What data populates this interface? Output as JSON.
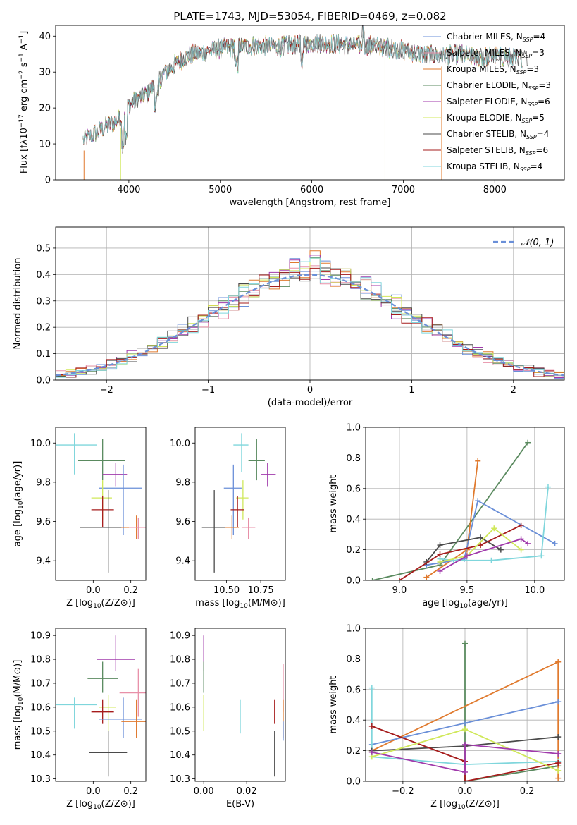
{
  "colors": {
    "cornflower": "#6a8fd8",
    "orange": "#e07a2e",
    "green": "#5a8a5f",
    "purple": "#a03aab",
    "yellow": "#d0e85a",
    "teal": "#7fd6dc",
    "charcoal": "#4a4a4a",
    "crimson": "#a61c1c",
    "pink": "#e890a8"
  },
  "chart_data": [
    {
      "id": "spectrum",
      "type": "line",
      "title": "PLATE=1743, MJD=53054, FIBERID=0469, z=0.082",
      "xlabel": "wavelength [Angstrom, rest frame]",
      "ylabel": "Flux [fλ10^−17 erg cm^−2 s^−1 A^−1]",
      "xlim": [
        3200,
        8760
      ],
      "ylim": [
        0,
        43
      ],
      "xticks": [
        "4000",
        "5000",
        "6000",
        "7000",
        "8000"
      ],
      "yticks": [
        "0",
        "10",
        "20",
        "30",
        "40"
      ],
      "legend_position": "top-right",
      "x": [
        3500,
        3700,
        3900,
        4000,
        4100,
        4200,
        4300,
        4400,
        4500,
        4600,
        4700,
        4800,
        4900,
        5000,
        5200,
        5400,
        5600,
        5800,
        6000,
        6200,
        6400,
        6600,
        6800,
        7000,
        7200,
        7400,
        7600,
        7800,
        8000,
        8200,
        8400
      ],
      "y": [
        11,
        14,
        17,
        21,
        22.5,
        24,
        27,
        30,
        32,
        34,
        35,
        35.5,
        36,
        36.5,
        37,
        37.5,
        37,
        37.5,
        38,
        38,
        37.5,
        37.5,
        37,
        36,
        35,
        34.5,
        35,
        34,
        34.5,
        34,
        34
      ],
      "series": [
        {
          "name": "Chabrier MILES, N",
          "sub": "SSP",
          "suffix": "=4",
          "color_key": "cornflower"
        },
        {
          "name": "Salpeter MILES, N",
          "sub": "SSP",
          "suffix": "=3",
          "color_key": "pink"
        },
        {
          "name": "Kroupa MILES, N",
          "sub": "SSP",
          "suffix": "=3",
          "color_key": "orange"
        },
        {
          "name": "Chabrier ELODIE, N",
          "sub": "SSP",
          "suffix": "=3",
          "color_key": "green"
        },
        {
          "name": "Salpeter ELODIE, N",
          "sub": "SSP",
          "suffix": "=6",
          "color_key": "purple"
        },
        {
          "name": "Kroupa ELODIE, N",
          "sub": "SSP",
          "suffix": "=5",
          "color_key": "yellow"
        },
        {
          "name": "Chabrier STELIB, N",
          "sub": "SSP",
          "suffix": "=4",
          "color_key": "charcoal"
        },
        {
          "name": "Salpeter STELIB, N",
          "sub": "SSP",
          "suffix": "=6",
          "color_key": "crimson"
        },
        {
          "name": "Kroupa STELIB, N",
          "sub": "SSP",
          "suffix": "=4",
          "color_key": "teal"
        }
      ]
    },
    {
      "id": "residuals",
      "type": "histogram",
      "xlabel": "(data-model)/error",
      "ylabel": "Normed distribution",
      "xlim": [
        -2.5,
        2.5
      ],
      "ylim": [
        0,
        0.58
      ],
      "xticks": [
        "−2",
        "−1",
        "0",
        "1",
        "2"
      ],
      "yticks": [
        "0.0",
        "0.1",
        "0.2",
        "0.3",
        "0.4",
        "0.5"
      ],
      "grid": true,
      "legend_position": "top-right",
      "gaussian_label": "𝒩(0, 1)",
      "bin_width": 0.1
    },
    {
      "id": "age-vs-Z",
      "type": "errorbar",
      "xlabel": "Z [log10(Z/Z⊙)]",
      "ylabel": "age  [log10(age/yr)]",
      "xlim": [
        -0.2,
        0.28
      ],
      "ylim": [
        9.3,
        10.08
      ],
      "xticks": [
        "0.0",
        "0.2"
      ],
      "yticks": [
        "9.4",
        "9.6",
        "9.8",
        "10.0"
      ],
      "points": [
        {
          "color_key": "teal",
          "x": -0.1,
          "y": 9.99,
          "xerr": [
            0.1,
            0.12
          ],
          "yerr": [
            0.15,
            0.06
          ]
        },
        {
          "color_key": "green",
          "x": 0.05,
          "y": 9.91,
          "xerr": [
            0.13,
            0.12
          ],
          "yerr": [
            0.1,
            0.11
          ]
        },
        {
          "color_key": "purple",
          "x": 0.12,
          "y": 9.84,
          "xerr": [
            0.07,
            0.06
          ],
          "yerr": [
            0.06,
            0.06
          ]
        },
        {
          "color_key": "cornflower",
          "x": 0.16,
          "y": 9.77,
          "xerr": [
            0.13,
            0.1
          ],
          "yerr": [
            0.24,
            0.12
          ]
        },
        {
          "color_key": "yellow",
          "x": 0.05,
          "y": 9.72,
          "xerr": [
            0.06,
            0.05
          ],
          "yerr": [
            0.11,
            0.09
          ]
        },
        {
          "color_key": "crimson",
          "x": 0.05,
          "y": 9.66,
          "xerr": [
            0.06,
            0.06
          ],
          "yerr": [
            0.09,
            0.07
          ]
        },
        {
          "color_key": "charcoal",
          "x": 0.08,
          "y": 9.57,
          "xerr": [
            0.15,
            0.1
          ],
          "yerr": [
            0.23,
            0.19
          ]
        },
        {
          "color_key": "orange",
          "x": 0.23,
          "y": 9.57,
          "xerr": [
            0.08,
            0.06
          ],
          "yerr": [
            0.06,
            0.06
          ]
        },
        {
          "color_key": "pink",
          "x": 0.24,
          "y": 9.57,
          "xerr": [
            0.05,
            0.04
          ],
          "yerr": [
            0.06,
            0.05
          ]
        }
      ]
    },
    {
      "id": "age-vs-mass",
      "type": "errorbar",
      "xlabel": "mass [log10(M/M⊙)]",
      "ylabel": "",
      "xlim": [
        10.27,
        10.93
      ],
      "ylim": [
        9.3,
        10.08
      ],
      "xticks": [
        "10.50",
        "10.75"
      ],
      "yticks": [
        "9.4",
        "9.6",
        "9.8",
        "10.0"
      ],
      "points": [
        {
          "color_key": "teal",
          "x": 10.61,
          "y": 9.99,
          "xerr": [
            0.06,
            0.05
          ],
          "yerr": [
            0.14,
            0.06
          ]
        },
        {
          "color_key": "green",
          "x": 10.72,
          "y": 9.91,
          "xerr": [
            0.06,
            0.06
          ],
          "yerr": [
            0.1,
            0.11
          ]
        },
        {
          "color_key": "purple",
          "x": 10.8,
          "y": 9.84,
          "xerr": [
            0.05,
            0.06
          ],
          "yerr": [
            0.06,
            0.06
          ]
        },
        {
          "color_key": "cornflower",
          "x": 10.55,
          "y": 9.77,
          "xerr": [
            0.07,
            0.06
          ],
          "yerr": [
            0.24,
            0.12
          ]
        },
        {
          "color_key": "yellow",
          "x": 10.62,
          "y": 9.72,
          "xerr": [
            0.05,
            0.04
          ],
          "yerr": [
            0.11,
            0.09
          ]
        },
        {
          "color_key": "crimson",
          "x": 10.58,
          "y": 9.66,
          "xerr": [
            0.05,
            0.05
          ],
          "yerr": [
            0.09,
            0.07
          ]
        },
        {
          "color_key": "charcoal",
          "x": 10.41,
          "y": 9.57,
          "xerr": [
            0.09,
            0.1
          ],
          "yerr": [
            0.23,
            0.19
          ]
        },
        {
          "color_key": "orange",
          "x": 10.54,
          "y": 9.57,
          "xerr": [
            0.05,
            0.05
          ],
          "yerr": [
            0.06,
            0.06
          ]
        },
        {
          "color_key": "pink",
          "x": 10.66,
          "y": 9.57,
          "xerr": [
            0.05,
            0.05
          ],
          "yerr": [
            0.06,
            0.05
          ]
        }
      ]
    },
    {
      "id": "weight-vs-age",
      "type": "line",
      "xlabel": "age  [log10(age/yr)]",
      "ylabel": "mass weight",
      "xlim": [
        8.75,
        10.22
      ],
      "ylim": [
        0,
        1
      ],
      "xticks": [
        "9.0",
        "9.5",
        "10.0"
      ],
      "yticks": [
        "0.0",
        "0.2",
        "0.4",
        "0.6",
        "0.8",
        "1.0"
      ],
      "grid": true,
      "series": [
        {
          "color_key": "green",
          "x": [
            8.8,
            9.3,
            9.95
          ],
          "y": [
            0.0,
            0.1,
            0.9
          ]
        },
        {
          "color_key": "orange",
          "x": [
            9.2,
            9.5,
            9.58
          ],
          "y": [
            0.02,
            0.2,
            0.78
          ]
        },
        {
          "color_key": "cornflower",
          "x": [
            9.2,
            9.48,
            9.58,
            10.15
          ],
          "y": [
            0.1,
            0.14,
            0.52,
            0.24
          ]
        },
        {
          "color_key": "teal",
          "x": [
            9.3,
            9.4,
            9.68,
            10.05,
            10.1
          ],
          "y": [
            0.14,
            0.13,
            0.13,
            0.16,
            0.61
          ]
        },
        {
          "color_key": "charcoal",
          "x": [
            9.2,
            9.3,
            9.6,
            9.75
          ],
          "y": [
            0.12,
            0.23,
            0.28,
            0.2
          ]
        },
        {
          "color_key": "crimson",
          "x": [
            9.0,
            9.3,
            9.6,
            9.9
          ],
          "y": [
            0.0,
            0.17,
            0.23,
            0.36
          ]
        },
        {
          "color_key": "yellow",
          "x": [
            9.3,
            9.5,
            9.7,
            9.9
          ],
          "y": [
            0.12,
            0.16,
            0.34,
            0.2
          ]
        },
        {
          "color_key": "purple",
          "x": [
            9.3,
            9.5,
            9.9,
            9.95
          ],
          "y": [
            0.06,
            0.16,
            0.27,
            0.24
          ]
        }
      ]
    },
    {
      "id": "mass-vs-Z",
      "type": "errorbar",
      "xlabel": "Z [log10(Z/Z⊙)]",
      "ylabel": "mass [log10(M/M⊙)]",
      "xlim": [
        -0.2,
        0.28
      ],
      "ylim": [
        10.29,
        10.93
      ],
      "xticks": [
        "0.0",
        "0.2"
      ],
      "yticks": [
        "10.3",
        "10.4",
        "10.5",
        "10.6",
        "10.7",
        "10.8",
        "10.9"
      ],
      "points": [
        {
          "color_key": "purple",
          "x": 0.12,
          "y": 10.8,
          "xerr": [
            0.1,
            0.1
          ],
          "yerr": [
            0.05,
            0.1
          ]
        },
        {
          "color_key": "green",
          "x": 0.05,
          "y": 10.72,
          "xerr": [
            0.08,
            0.08
          ],
          "yerr": [
            0.06,
            0.07
          ]
        },
        {
          "color_key": "pink",
          "x": 0.24,
          "y": 10.66,
          "xerr": [
            0.1,
            0.04
          ],
          "yerr": [
            0.1,
            0.1
          ]
        },
        {
          "color_key": "teal",
          "x": -0.1,
          "y": 10.61,
          "xerr": [
            0.1,
            0.12
          ],
          "yerr": [
            0.1,
            0.03
          ]
        },
        {
          "color_key": "yellow",
          "x": 0.08,
          "y": 10.6,
          "xerr": [
            0.05,
            0.04
          ],
          "yerr": [
            0.1,
            0.05
          ]
        },
        {
          "color_key": "crimson",
          "x": 0.05,
          "y": 10.58,
          "xerr": [
            0.06,
            0.06
          ],
          "yerr": [
            0.05,
            0.05
          ]
        },
        {
          "color_key": "cornflower",
          "x": 0.16,
          "y": 10.55,
          "xerr": [
            0.13,
            0.1
          ],
          "yerr": [
            0.08,
            0.09
          ]
        },
        {
          "color_key": "orange",
          "x": 0.23,
          "y": 10.54,
          "xerr": [
            0.08,
            0.06
          ],
          "yerr": [
            0.07,
            0.09
          ]
        },
        {
          "color_key": "charcoal",
          "x": 0.08,
          "y": 10.41,
          "xerr": [
            0.1,
            0.1
          ],
          "yerr": [
            0.1,
            0.09
          ]
        }
      ]
    },
    {
      "id": "mass-vs-ebv",
      "type": "errorbar",
      "xlabel": "E(B-V)",
      "ylabel": "",
      "xlim": [
        -0.004,
        0.038
      ],
      "ylim": [
        10.29,
        10.93
      ],
      "xticks": [
        "0.00",
        "0.02"
      ],
      "yticks": [
        "10.3",
        "10.4",
        "10.5",
        "10.6",
        "10.7",
        "10.8",
        "10.9"
      ],
      "points": [
        {
          "color_key": "purple",
          "x": 0.0,
          "y": 10.8,
          "xerr": [
            0,
            0
          ],
          "yerr": [
            0.05,
            0.1
          ]
        },
        {
          "color_key": "green",
          "x": 0.0,
          "y": 10.72,
          "xerr": [
            0,
            0
          ],
          "yerr": [
            0.06,
            0.07
          ]
        },
        {
          "color_key": "yellow",
          "x": 0.0,
          "y": 10.6,
          "xerr": [
            0,
            0
          ],
          "yerr": [
            0.1,
            0.05
          ]
        },
        {
          "color_key": "teal",
          "x": 0.017,
          "y": 10.56,
          "xerr": [
            0,
            0
          ],
          "yerr": [
            0.07,
            0.07
          ]
        },
        {
          "color_key": "crimson",
          "x": 0.033,
          "y": 10.58,
          "xerr": [
            0,
            0
          ],
          "yerr": [
            0.05,
            0.05
          ]
        },
        {
          "color_key": "charcoal",
          "x": 0.033,
          "y": 10.41,
          "xerr": [
            0,
            0
          ],
          "yerr": [
            0.1,
            0.09
          ]
        },
        {
          "color_key": "pink",
          "x": 0.037,
          "y": 10.68,
          "xerr": [
            0,
            0
          ],
          "yerr": [
            0.1,
            0.1
          ]
        },
        {
          "color_key": "orange",
          "x": 0.037,
          "y": 10.54,
          "xerr": [
            0,
            0
          ],
          "yerr": [
            0.07,
            0.09
          ]
        },
        {
          "color_key": "cornflower",
          "x": 0.037,
          "y": 10.5,
          "xerr": [
            0,
            0
          ],
          "yerr": [
            0.04,
            0.04
          ]
        }
      ]
    },
    {
      "id": "weight-vs-Z",
      "type": "line",
      "xlabel": "Z [log10(Z/Z⊙)]",
      "ylabel": "mass weight",
      "xlim": [
        -0.32,
        0.32
      ],
      "ylim": [
        0,
        1
      ],
      "xticks": [
        "−0.2",
        "0.0",
        "0.2"
      ],
      "yticks": [
        "0.0",
        "0.2",
        "0.4",
        "0.6",
        "0.8",
        "1.0"
      ],
      "grid": true,
      "series": [
        {
          "color_key": "green",
          "x": [
            0.0,
            0.0,
            0.3
          ],
          "y": [
            0.9,
            0.0,
            0.1
          ]
        },
        {
          "color_key": "orange",
          "x": [
            -0.3,
            0.3,
            0.3
          ],
          "y": [
            0.2,
            0.78,
            0.02
          ]
        },
        {
          "color_key": "cornflower",
          "x": [
            -0.3,
            0.0,
            0.3
          ],
          "y": [
            0.24,
            0.38,
            0.52
          ]
        },
        {
          "color_key": "teal",
          "x": [
            -0.3,
            -0.3,
            0.0,
            0.3
          ],
          "y": [
            0.61,
            0.16,
            0.11,
            0.13
          ]
        },
        {
          "color_key": "charcoal",
          "x": [
            -0.3,
            0.0,
            0.3
          ],
          "y": [
            0.2,
            0.23,
            0.29
          ]
        },
        {
          "color_key": "crimson",
          "x": [
            -0.3,
            0.0,
            0.0,
            0.3
          ],
          "y": [
            0.36,
            0.13,
            0.0,
            0.12
          ]
        },
        {
          "color_key": "yellow",
          "x": [
            -0.3,
            0.0,
            0.3
          ],
          "y": [
            0.16,
            0.34,
            0.07
          ]
        },
        {
          "color_key": "purple",
          "x": [
            -0.3,
            0.0,
            0.0,
            0.3
          ],
          "y": [
            0.19,
            0.06,
            0.24,
            0.18
          ]
        }
      ]
    }
  ]
}
